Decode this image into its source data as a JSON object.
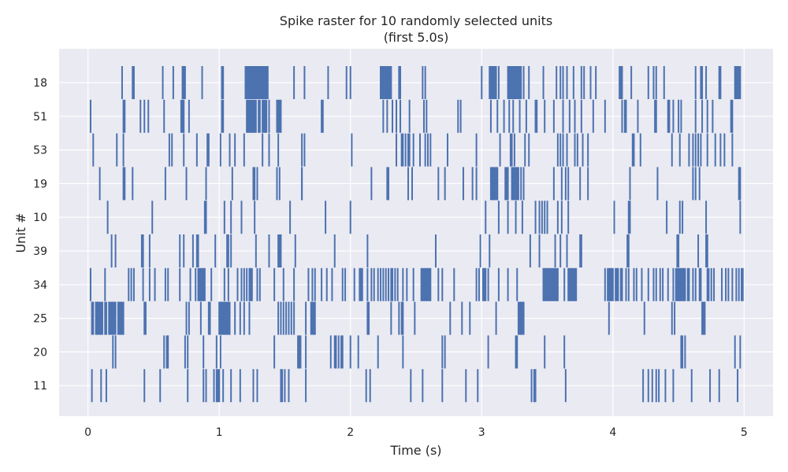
{
  "chart_data": {
    "type": "raster",
    "title": "Spike raster for 10 randomly selected units",
    "subtitle": "(first 5.0s)",
    "xlabel": "Time (s)",
    "ylabel": "Unit #",
    "xlim": [
      -0.22,
      5.22
    ],
    "x_ticks": [
      0,
      1,
      2,
      3,
      4,
      5
    ],
    "x_tick_labels": [
      "0",
      "1",
      "2",
      "3",
      "4",
      "5"
    ],
    "grid": true,
    "colors": {
      "spike": "#4c72b0",
      "background": "#eaeaf2",
      "grid": "#ffffff"
    },
    "units": [
      {
        "name": "11",
        "spikes": [
          0.03,
          0.1,
          0.14,
          0.43,
          0.55,
          0.76,
          0.88,
          0.9,
          0.96,
          0.98,
          0.99,
          1.0,
          1.03,
          1.09,
          1.16,
          1.26,
          1.29,
          1.47,
          1.48,
          1.5,
          1.53,
          1.66,
          2.12,
          2.15,
          2.46,
          2.55,
          2.7,
          2.88,
          2.97,
          3.38,
          3.4,
          3.41,
          3.64,
          4.23,
          4.27,
          4.3,
          4.33,
          4.35,
          4.4,
          4.46,
          4.6,
          4.74,
          4.81,
          4.95
        ]
      },
      {
        "name": "20",
        "spikes": [
          0.19,
          0.21,
          0.58,
          0.6,
          0.61,
          0.74,
          0.76,
          0.88,
          0.98,
          1.01,
          1.42,
          1.6,
          1.61,
          1.62,
          1.66,
          1.85,
          1.88,
          1.89,
          1.91,
          1.93,
          1.94,
          2.0,
          2.06,
          2.21,
          2.4,
          2.7,
          2.72,
          3.05,
          3.26,
          3.27,
          3.48,
          3.63,
          4.52,
          4.53,
          4.55,
          4.93,
          4.97
        ]
      },
      {
        "name": "25",
        "spikes": [
          0.03,
          0.04,
          0.06,
          0.07,
          0.08,
          0.09,
          0.1,
          0.11,
          0.13,
          0.14,
          0.16,
          0.17,
          0.18,
          0.19,
          0.2,
          0.21,
          0.23,
          0.24,
          0.25,
          0.26,
          0.27,
          0.43,
          0.44,
          0.75,
          0.77,
          0.86,
          0.92,
          0.93,
          1.0,
          1.01,
          1.02,
          1.03,
          1.04,
          1.05,
          1.06,
          1.07,
          1.08,
          1.12,
          1.16,
          1.19,
          1.23,
          1.45,
          1.47,
          1.49,
          1.51,
          1.53,
          1.55,
          1.57,
          1.66,
          1.7,
          1.71,
          1.72,
          1.73,
          2.13,
          2.14,
          2.31,
          2.37,
          2.39,
          2.4,
          2.49,
          2.76,
          2.85,
          2.91,
          3.11,
          3.28,
          3.29,
          3.3,
          3.31,
          3.32,
          3.97,
          4.24,
          4.45,
          4.47,
          4.68,
          4.69,
          4.7
        ]
      },
      {
        "name": "34",
        "spikes": [
          0.02,
          0.13,
          0.31,
          0.33,
          0.35,
          0.42,
          0.47,
          0.51,
          0.59,
          0.61,
          0.7,
          0.78,
          0.82,
          0.84,
          0.85,
          0.86,
          0.87,
          0.88,
          0.89,
          0.94,
          1.04,
          1.07,
          1.14,
          1.17,
          1.19,
          1.21,
          1.23,
          1.24,
          1.25,
          1.29,
          1.31,
          1.42,
          1.49,
          1.57,
          1.68,
          1.71,
          1.73,
          1.78,
          1.82,
          1.86,
          1.94,
          1.96,
          2.03,
          2.07,
          2.08,
          2.09,
          2.13,
          2.16,
          2.18,
          2.21,
          2.23,
          2.25,
          2.27,
          2.29,
          2.31,
          2.32,
          2.34,
          2.36,
          2.4,
          2.43,
          2.48,
          2.54,
          2.55,
          2.56,
          2.57,
          2.58,
          2.59,
          2.6,
          2.61,
          2.67,
          2.7,
          2.79,
          2.96,
          2.98,
          3.01,
          3.02,
          3.03,
          3.05,
          3.13,
          3.2,
          3.27,
          3.47,
          3.48,
          3.49,
          3.5,
          3.51,
          3.52,
          3.53,
          3.54,
          3.55,
          3.56,
          3.57,
          3.58,
          3.63,
          3.66,
          3.67,
          3.68,
          3.69,
          3.7,
          3.71,
          3.72,
          3.94,
          3.96,
          3.97,
          3.98,
          3.99,
          4.0,
          4.02,
          4.03,
          4.04,
          4.06,
          4.07,
          4.1,
          4.12,
          4.16,
          4.18,
          4.22,
          4.27,
          4.31,
          4.33,
          4.36,
          4.38,
          4.42,
          4.46,
          4.48,
          4.49,
          4.5,
          4.51,
          4.52,
          4.53,
          4.54,
          4.55,
          4.57,
          4.58,
          4.61,
          4.63,
          4.66,
          4.67,
          4.72,
          4.73,
          4.75,
          4.77,
          4.83,
          4.86,
          4.88,
          4.91,
          4.94,
          4.96,
          4.98,
          4.99
        ]
      },
      {
        "name": "39",
        "spikes": [
          0.18,
          0.21,
          0.41,
          0.42,
          0.47,
          0.7,
          0.73,
          0.8,
          0.83,
          0.84,
          0.97,
          1.06,
          1.07,
          1.09,
          1.28,
          1.38,
          1.45,
          1.46,
          1.47,
          1.58,
          1.88,
          2.13,
          2.65,
          2.99,
          3.06,
          3.37,
          3.44,
          3.56,
          3.6,
          3.65,
          3.75,
          3.76,
          4.11,
          4.12,
          4.49,
          4.5,
          4.65,
          4.71,
          4.72
        ]
      },
      {
        "name": "10",
        "spikes": [
          0.15,
          0.49,
          0.89,
          0.9,
          1.04,
          1.09,
          1.17,
          1.27,
          1.54,
          1.81,
          2.0,
          3.03,
          3.13,
          3.2,
          3.26,
          3.31,
          3.41,
          3.44,
          3.46,
          3.48,
          3.5,
          3.58,
          3.61,
          3.66,
          4.01,
          4.12,
          4.13,
          4.41,
          4.51,
          4.53,
          4.71,
          4.97
        ]
      },
      {
        "name": "19",
        "spikes": [
          0.09,
          0.27,
          0.28,
          0.34,
          0.59,
          0.75,
          0.9,
          1.1,
          1.26,
          1.27,
          1.29,
          1.44,
          1.46,
          1.63,
          1.63,
          2.16,
          2.28,
          2.29,
          2.44,
          2.47,
          2.67,
          2.72,
          2.86,
          2.93,
          2.96,
          3.07,
          3.08,
          3.09,
          3.1,
          3.11,
          3.12,
          3.18,
          3.19,
          3.2,
          3.23,
          3.24,
          3.25,
          3.26,
          3.27,
          3.28,
          3.3,
          3.32,
          3.55,
          3.61,
          3.64,
          3.66,
          3.75,
          3.81,
          4.13,
          4.34,
          4.61,
          4.63,
          4.66,
          4.96,
          4.97
        ]
      },
      {
        "name": "53",
        "spikes": [
          0.04,
          0.22,
          0.27,
          0.62,
          0.64,
          0.73,
          0.83,
          0.91,
          0.92,
          1.01,
          1.08,
          1.12,
          1.19,
          1.33,
          1.38,
          1.45,
          1.63,
          1.65,
          2.01,
          2.35,
          2.39,
          2.4,
          2.42,
          2.44,
          2.45,
          2.48,
          2.53,
          2.57,
          2.59,
          2.61,
          2.74,
          2.96,
          3.14,
          3.22,
          3.23,
          3.25,
          3.33,
          3.36,
          3.58,
          3.6,
          3.62,
          3.65,
          3.71,
          3.73,
          3.77,
          3.81,
          4.15,
          4.16,
          4.21,
          4.45,
          4.51,
          4.58,
          4.61,
          4.63,
          4.65,
          4.67,
          4.72,
          4.78,
          4.82,
          4.85,
          4.91
        ]
      },
      {
        "name": "51",
        "spikes": [
          0.02,
          0.27,
          0.28,
          0.4,
          0.43,
          0.46,
          0.58,
          0.71,
          0.72,
          0.73,
          0.77,
          1.02,
          1.03,
          1.21,
          1.22,
          1.23,
          1.24,
          1.25,
          1.26,
          1.27,
          1.28,
          1.3,
          1.31,
          1.33,
          1.34,
          1.35,
          1.36,
          1.38,
          1.44,
          1.45,
          1.46,
          1.47,
          1.78,
          1.79,
          2.25,
          2.28,
          2.32,
          2.35,
          2.38,
          2.45,
          2.56,
          2.58,
          2.82,
          2.84,
          3.07,
          3.12,
          3.17,
          3.21,
          3.24,
          3.29,
          3.34,
          3.41,
          3.42,
          3.48,
          3.55,
          3.62,
          3.67,
          3.71,
          3.76,
          3.85,
          3.94,
          4.07,
          4.09,
          4.1,
          4.19,
          4.32,
          4.33,
          4.42,
          4.43,
          4.46,
          4.5,
          4.52,
          4.63,
          4.68,
          4.72,
          4.76,
          4.9,
          4.91
        ]
      },
      {
        "name": "18",
        "spikes": [
          0.26,
          0.34,
          0.35,
          0.57,
          0.65,
          0.72,
          0.73,
          0.74,
          0.87,
          1.02,
          1.03,
          1.2,
          1.21,
          1.22,
          1.23,
          1.24,
          1.25,
          1.26,
          1.27,
          1.28,
          1.29,
          1.3,
          1.31,
          1.32,
          1.33,
          1.34,
          1.35,
          1.36,
          1.37,
          1.57,
          1.65,
          1.83,
          1.97,
          2.0,
          2.23,
          2.24,
          2.25,
          2.26,
          2.27,
          2.28,
          2.29,
          2.3,
          2.31,
          2.37,
          2.38,
          2.55,
          2.57,
          3.0,
          3.06,
          3.07,
          3.08,
          3.09,
          3.1,
          3.11,
          3.13,
          3.2,
          3.21,
          3.22,
          3.23,
          3.24,
          3.25,
          3.26,
          3.27,
          3.28,
          3.29,
          3.3,
          3.32,
          3.36,
          3.47,
          3.57,
          3.6,
          3.62,
          3.65,
          3.7,
          3.76,
          3.78,
          3.83,
          3.87,
          4.05,
          4.06,
          4.07,
          4.14,
          4.27,
          4.31,
          4.33,
          4.39,
          4.63,
          4.67,
          4.68,
          4.71,
          4.81,
          4.82,
          4.93,
          4.94,
          4.95,
          4.96,
          4.97
        ]
      }
    ]
  }
}
